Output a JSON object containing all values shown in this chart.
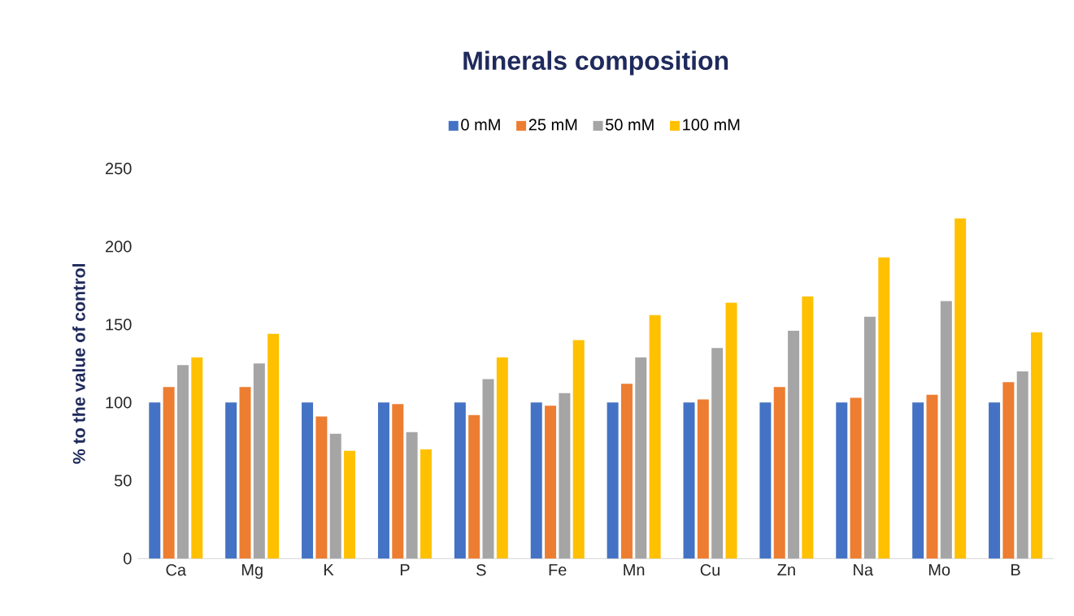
{
  "chart_data": {
    "type": "bar",
    "title": "Minerals composition",
    "ylabel": "% to the value of control",
    "categories": [
      "Ca",
      "Mg",
      "K",
      "P",
      "S",
      "Fe",
      "Mn",
      "Cu",
      "Zn",
      "Na",
      "Mo",
      "B"
    ],
    "series": [
      {
        "name": "0 mM",
        "color": "#4472c4",
        "values": [
          100,
          100,
          100,
          100,
          100,
          100,
          100,
          100,
          100,
          100,
          100,
          100
        ]
      },
      {
        "name": "25 mM",
        "color": "#ed7d31",
        "values": [
          110,
          110,
          91,
          99,
          92,
          98,
          112,
          102,
          110,
          103,
          105,
          113
        ]
      },
      {
        "name": "50 mM",
        "color": "#a5a5a5",
        "values": [
          124,
          125,
          80,
          81,
          115,
          106,
          129,
          135,
          146,
          155,
          165,
          120
        ]
      },
      {
        "name": "100 mM",
        "color": "#ffc000",
        "values": [
          129,
          144,
          69,
          70,
          129,
          140,
          156,
          164,
          168,
          193,
          218,
          145
        ]
      }
    ],
    "ylim": [
      0,
      250
    ],
    "yticks": [
      0,
      50,
      100,
      150,
      200,
      250
    ],
    "legend": "top"
  }
}
